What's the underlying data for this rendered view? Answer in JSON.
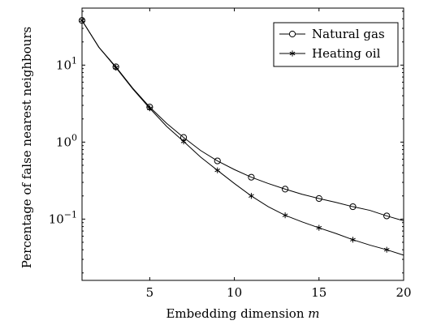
{
  "chart_data": {
    "type": "line",
    "title": "",
    "xlabel_main": "Embedding dimension ",
    "xlabel_var": "m",
    "ylabel": "Percentage of false nearest neighbours",
    "xlim": [
      1,
      20
    ],
    "ylim": [
      0.016,
      55
    ],
    "yscale": "log",
    "grid": false,
    "legend_position": "top-right",
    "x_ticks": [
      5,
      10,
      15,
      20
    ],
    "x_tick_labels": [
      "5",
      "10",
      "15",
      "20"
    ],
    "y_ticks": [
      0.1,
      1,
      10
    ],
    "y_tick_labels": [
      {
        "base": "10",
        "exp": "−1"
      },
      {
        "base": "10",
        "exp": "0"
      },
      {
        "base": "10",
        "exp": "1"
      }
    ],
    "series": [
      {
        "name": "Natural gas",
        "marker": "circle",
        "x": [
          1,
          2,
          3,
          4,
          5,
          6,
          7,
          8,
          9,
          10,
          11,
          12,
          13,
          14,
          15,
          16,
          17,
          18,
          19,
          20
        ],
        "y": [
          38,
          17,
          9.5,
          5.0,
          2.85,
          1.75,
          1.15,
          0.78,
          0.57,
          0.44,
          0.35,
          0.29,
          0.245,
          0.21,
          0.185,
          0.165,
          0.145,
          0.13,
          0.11,
          0.095
        ]
      },
      {
        "name": "Heating oil",
        "marker": "star",
        "x": [
          1,
          2,
          3,
          4,
          5,
          6,
          7,
          8,
          9,
          10,
          11,
          12,
          13,
          14,
          15,
          16,
          17,
          18,
          19,
          20
        ],
        "y": [
          38,
          17,
          9.3,
          4.9,
          2.75,
          1.6,
          1.02,
          0.64,
          0.43,
          0.29,
          0.2,
          0.145,
          0.112,
          0.092,
          0.077,
          0.065,
          0.054,
          0.046,
          0.04,
          0.034
        ]
      }
    ]
  }
}
